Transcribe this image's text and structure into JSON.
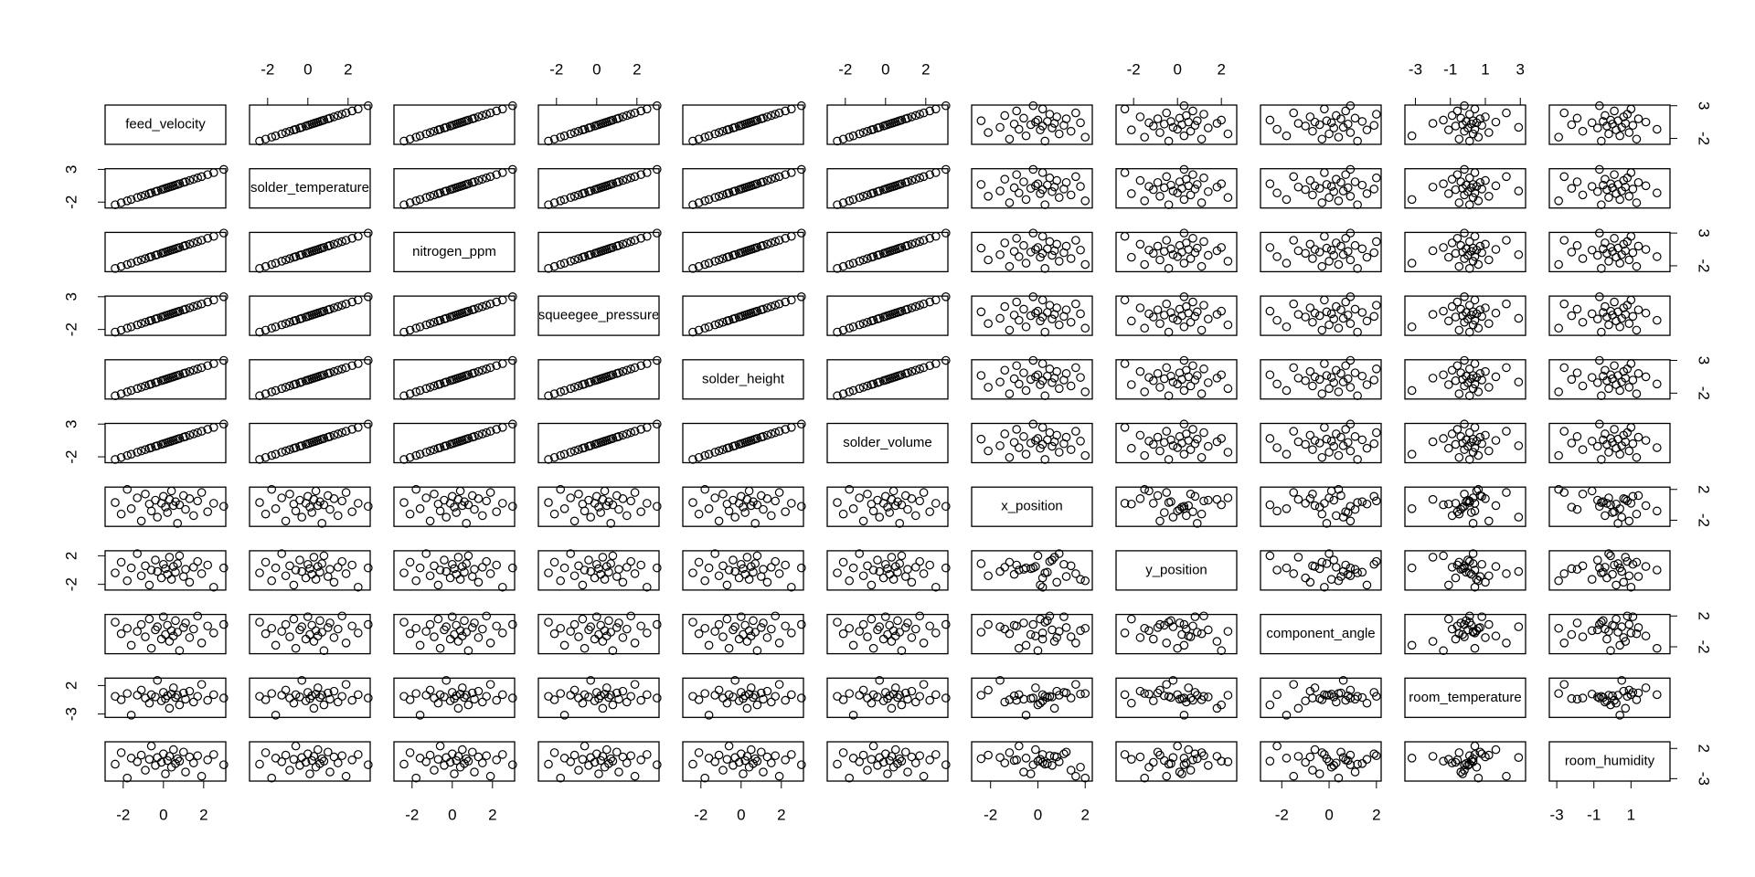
{
  "chart_data": {
    "type": "pairs",
    "point_color": "#000000",
    "variables": [
      {
        "name": "feed_velocity",
        "lim": [
          -2.9,
          3.1
        ],
        "xticks": [
          -2,
          0,
          2
        ],
        "yticks": [
          -2,
          3
        ],
        "values": [
          -2.4,
          -2.1,
          -1.8,
          -1.6,
          -1.3,
          -1.1,
          -0.9,
          -0.7,
          -0.6,
          -0.4,
          -0.3,
          -0.1,
          0,
          0.1,
          0.2,
          0.3,
          0.4,
          0.5,
          0.6,
          0.7,
          0.8,
          1.0,
          1.1,
          1.3,
          1.5,
          1.7,
          1.9,
          2.2,
          2.5,
          3.0
        ]
      },
      {
        "name": "solder_temperature",
        "lim": [
          -2.9,
          3.1
        ],
        "xticks": [
          -2,
          0,
          2
        ],
        "yticks": [
          -2,
          3
        ],
        "values": [
          -2.4,
          -2.1,
          -1.8,
          -1.6,
          -1.3,
          -1.1,
          -0.9,
          -0.7,
          -0.6,
          -0.4,
          -0.3,
          -0.1,
          0,
          0.1,
          0.2,
          0.3,
          0.4,
          0.5,
          0.6,
          0.7,
          0.8,
          1.0,
          1.1,
          1.3,
          1.5,
          1.7,
          1.9,
          2.2,
          2.5,
          3.0
        ]
      },
      {
        "name": "nitrogen_ppm",
        "lim": [
          -2.9,
          3.1
        ],
        "xticks": [
          -2,
          0,
          2
        ],
        "yticks": [
          -2,
          3
        ],
        "values": [
          -2.4,
          -2.1,
          -1.8,
          -1.6,
          -1.3,
          -1.1,
          -0.9,
          -0.7,
          -0.6,
          -0.4,
          -0.3,
          -0.1,
          0,
          0.1,
          0.2,
          0.3,
          0.4,
          0.5,
          0.6,
          0.7,
          0.8,
          1.0,
          1.1,
          1.3,
          1.5,
          1.7,
          1.9,
          2.2,
          2.5,
          3.0
        ]
      },
      {
        "name": "squeegee_pressure",
        "lim": [
          -2.9,
          3.1
        ],
        "xticks": [
          -2,
          0,
          2
        ],
        "yticks": [
          -2,
          3
        ],
        "values": [
          -2.4,
          -2.1,
          -1.8,
          -1.6,
          -1.3,
          -1.1,
          -0.9,
          -0.7,
          -0.6,
          -0.4,
          -0.3,
          -0.1,
          0,
          0.1,
          0.2,
          0.3,
          0.4,
          0.5,
          0.6,
          0.7,
          0.8,
          1.0,
          1.1,
          1.3,
          1.5,
          1.7,
          1.9,
          2.2,
          2.5,
          3.0
        ]
      },
      {
        "name": "solder_height",
        "lim": [
          -2.9,
          3.1
        ],
        "xticks": [
          -2,
          0,
          2
        ],
        "yticks": [
          -2,
          3
        ],
        "values": [
          -2.4,
          -2.1,
          -1.8,
          -1.6,
          -1.3,
          -1.1,
          -0.9,
          -0.7,
          -0.6,
          -0.4,
          -0.3,
          -0.1,
          0,
          0.1,
          0.2,
          0.3,
          0.4,
          0.5,
          0.6,
          0.7,
          0.8,
          1.0,
          1.1,
          1.3,
          1.5,
          1.7,
          1.9,
          2.2,
          2.5,
          3.0
        ]
      },
      {
        "name": "solder_volume",
        "lim": [
          -2.9,
          3.1
        ],
        "xticks": [
          -2,
          0,
          2
        ],
        "yticks": [
          -2,
          3
        ],
        "values": [
          -2.4,
          -2.1,
          -1.8,
          -1.6,
          -1.3,
          -1.1,
          -0.9,
          -0.7,
          -0.6,
          -0.4,
          -0.3,
          -0.1,
          0,
          0.1,
          0.2,
          0.3,
          0.4,
          0.5,
          0.6,
          0.7,
          0.8,
          1.0,
          1.1,
          1.3,
          1.5,
          1.7,
          1.9,
          2.2,
          2.5,
          3.0
        ]
      },
      {
        "name": "x_position",
        "lim": [
          -2.8,
          2.3
        ],
        "xticks": [
          -2,
          0,
          2
        ],
        "yticks": [
          -2,
          2
        ],
        "values": [
          0.3,
          -1.2,
          2.0,
          -0.5,
          0.9,
          -2.1,
          1.4,
          0.1,
          -0.8,
          0.6,
          -1.6,
          0.2,
          1.1,
          -0.3,
          -1.0,
          0.7,
          1.8,
          -0.1,
          0.4,
          -2.4,
          0.0,
          1.2,
          -0.6,
          0.8,
          -1.4,
          0.5,
          1.6,
          -0.9,
          0.2,
          -0.2
        ]
      },
      {
        "name": "y_position",
        "lim": [
          -2.8,
          2.7
        ],
        "xticks": [
          -2,
          0,
          2
        ],
        "yticks": [
          -2,
          2
        ],
        "values": [
          -0.4,
          1.1,
          -1.5,
          0.3,
          2.3,
          -0.8,
          0.6,
          -2.1,
          0.0,
          1.4,
          -0.2,
          -1.1,
          0.8,
          0.2,
          -0.6,
          1.8,
          -1.3,
          0.5,
          -0.3,
          0.9,
          2.0,
          -0.9,
          0.1,
          -1.7,
          0.4,
          1.2,
          -0.5,
          0.7,
          -2.4,
          0.3
        ]
      },
      {
        "name": "component_angle",
        "lim": [
          -2.9,
          2.2
        ],
        "xticks": [
          -2,
          0,
          2
        ],
        "yticks": [
          -2,
          2
        ],
        "values": [
          1.2,
          -0.3,
          0.4,
          -1.8,
          0.0,
          0.9,
          -0.7,
          1.6,
          -2.2,
          0.2,
          0.6,
          -1.0,
          1.9,
          -0.4,
          0.8,
          -1.3,
          0.1,
          -0.6,
          1.4,
          -0.1,
          -2.5,
          0.5,
          1.1,
          -0.8,
          0.3,
          2.0,
          -1.5,
          0.7,
          -0.2,
          0.9
        ]
      },
      {
        "name": "room_temperature",
        "lim": [
          -3.6,
          3.3
        ],
        "xticks": [
          -3,
          -1,
          1,
          3
        ],
        "yticks": [
          -3,
          2
        ],
        "values": [
          0.1,
          -0.5,
          0.6,
          -3.2,
          0.3,
          1.2,
          -0.2,
          -1.1,
          0.4,
          0.0,
          2.9,
          -0.7,
          0.8,
          -0.3,
          0.2,
          -2.0,
          0.5,
          1.6,
          -0.1,
          0.3,
          -1.4,
          0.7,
          -0.4,
          1.0,
          -0.9,
          0.1,
          2.2,
          -0.6,
          0.4,
          -0.2
        ]
      },
      {
        "name": "room_humidity",
        "lim": [
          -3.4,
          3.1
        ],
        "xticks": [
          -3,
          -1,
          1
        ],
        "yticks": [
          -3,
          2
        ],
        "values": [
          -0.6,
          1.3,
          -2.9,
          0.4,
          -0.2,
          0.9,
          -1.6,
          0.2,
          2.4,
          -0.8,
          0.5,
          -0.3,
          1.1,
          -2.2,
          0.0,
          0.7,
          -1.1,
          1.8,
          -0.5,
          0.3,
          -0.1,
          1.4,
          -1.9,
          0.6,
          -0.4,
          0.8,
          -2.6,
          0.1,
          1.0,
          -0.7
        ]
      }
    ]
  }
}
